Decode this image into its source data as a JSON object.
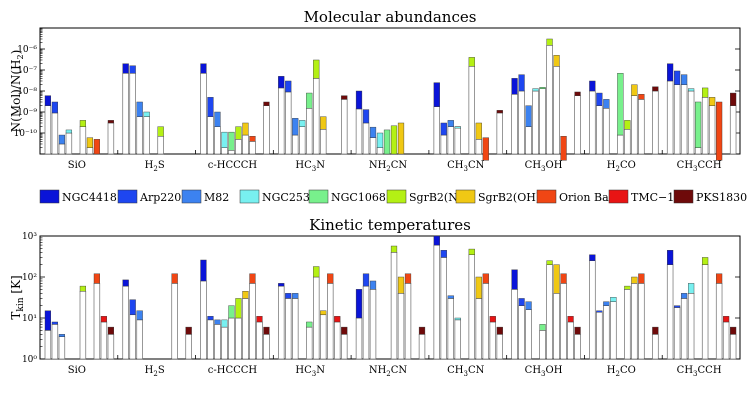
{
  "legend": [
    {
      "name": "NGC4418",
      "color": "#0a14d8"
    },
    {
      "name": "Arp220",
      "color": "#1e46f0"
    },
    {
      "name": "M82",
      "color": "#3c82f0"
    },
    {
      "name": "NGC253",
      "color": "#78f0f0"
    },
    {
      "name": "NGC1068",
      "color": "#78f08c"
    },
    {
      "name": "SgrB2(N)",
      "color": "#b4f014"
    },
    {
      "name": "SgrB2(OH)",
      "color": "#f0c814"
    },
    {
      "name": "Orion Bar",
      "color": "#f04614"
    },
    {
      "name": "TMC−1",
      "color": "#e81414"
    },
    {
      "name": "PKS1830",
      "color": "#6e0a0a"
    }
  ],
  "chart_data": [
    {
      "type": "bar",
      "title": "Molecular abundances",
      "ylabel": "N(Mol)/N(H2)",
      "yscale": "log",
      "ylim": [
        1e-11,
        1e-05
      ],
      "yticks": [
        "10⁻¹⁰",
        "10⁻⁹",
        "10⁻⁸",
        "10⁻⁷",
        "10⁻⁶"
      ],
      "categories": [
        "SiO",
        "H2S",
        "c-HCCCH",
        "HC3N",
        "NH2CN",
        "CH3CN",
        "CH3OH",
        "H2CO",
        "CH3CCH"
      ],
      "category_labels": [
        {
          "base": "SiO",
          "sub": ""
        },
        {
          "base": "H",
          "sub": "2",
          "rest": "S"
        },
        {
          "base": "c-HCCCH",
          "sub": ""
        },
        {
          "base": "HC",
          "sub": "3",
          "rest": "N"
        },
        {
          "base": "NH",
          "sub": "2",
          "rest": "CN"
        },
        {
          "base": "CH",
          "sub": "3",
          "rest": "CN"
        },
        {
          "base": "CH",
          "sub": "3",
          "rest": "OH"
        },
        {
          "base": "H",
          "sub": "2",
          "rest": "CO"
        },
        {
          "base": "CH",
          "sub": "3",
          "rest": "CCH"
        }
      ],
      "series_order": [
        "NGC4418",
        "Arp220",
        "M82",
        "NGC253",
        "NGC1068",
        "SgrB2(N)",
        "SgrB2(OH)",
        "Orion Bar",
        "TMC−1",
        "PKS1830"
      ],
      "values": [
        [
          [
            2e-09,
            6e-09
          ],
          [
            9e-10,
            3e-09
          ],
          [
            3e-11,
            8e-11
          ],
          [
            1e-10,
            1.4e-10
          ],
          [
            null,
            null
          ],
          [
            2e-10,
            4e-10
          ],
          [
            2e-11,
            6e-11
          ],
          [
            1e-11,
            5e-11
          ],
          [
            null,
            null
          ],
          [
            3e-10,
            4e-10
          ]
        ],
        [
          [
            7e-08,
            2e-07
          ],
          [
            7e-08,
            1.6e-07
          ],
          [
            6e-10,
            3e-09
          ],
          [
            6e-10,
            1e-09
          ],
          [
            null,
            null
          ],
          [
            7e-11,
            2e-10
          ],
          [
            null,
            null
          ],
          [
            null,
            null
          ],
          [
            null,
            null
          ],
          [
            null,
            null
          ]
        ],
        [
          [
            7e-08,
            2e-07
          ],
          [
            6e-10,
            5e-09
          ],
          [
            2e-10,
            1e-09
          ],
          [
            2e-11,
            1.1e-10
          ],
          [
            1.5e-11,
            1.1e-10
          ],
          [
            5e-11,
            2e-10
          ],
          [
            8e-11,
            3e-10
          ],
          [
            4e-11,
            7e-11
          ],
          [
            null,
            null
          ],
          [
            2e-09,
            3e-09
          ]
        ],
        [
          [
            1.4e-08,
            5e-08
          ],
          [
            9e-09,
            3e-08
          ],
          [
            8e-11,
            5e-10
          ],
          [
            2e-10,
            4e-10
          ],
          [
            1.5e-09,
            8e-09
          ],
          [
            4e-08,
            3e-07
          ],
          [
            1.5e-10,
            6e-10
          ],
          [
            null,
            null
          ],
          [
            null,
            null
          ],
          [
            4e-09,
            6e-09
          ]
        ],
        [
          [
            1.4e-09,
            1e-08
          ],
          [
            3e-10,
            1.3e-09
          ],
          [
            6e-11,
            1.9e-10
          ],
          [
            2e-11,
            1e-10
          ],
          [
            1e-11,
            1.4e-10
          ],
          [
            1e-11,
            2.2e-10
          ],
          [
            1e-11,
            3e-10
          ],
          [
            null,
            null
          ],
          [
            null,
            null
          ],
          [
            null,
            null
          ]
        ],
        [
          [
            1.8e-09,
            2.5e-08
          ],
          [
            8e-11,
            3e-10
          ],
          [
            2e-10,
            4e-10
          ],
          [
            2e-10,
            2e-10
          ],
          [
            null,
            null
          ],
          [
            1.5e-07,
            4e-07
          ],
          [
            5e-11,
            3e-10
          ],
          [
            5e-12,
            6e-11
          ],
          [
            null,
            null
          ],
          [
            9e-10,
            1.2e-09
          ]
        ],
        [
          [
            7e-09,
            4e-08
          ],
          [
            1e-08,
            6e-08
          ],
          [
            2e-10,
            2e-09
          ],
          [
            1e-08,
            1.3e-08
          ],
          [
            1.3e-08,
            1.5e-08
          ],
          [
            1.5e-06,
            3e-06
          ],
          [
            1.5e-07,
            5e-07
          ],
          [
            5e-12,
            7e-11
          ],
          [
            null,
            null
          ],
          [
            6e-09,
            9e-09
          ]
        ],
        [
          [
            1e-08,
            3e-08
          ],
          [
            2e-09,
            8e-09
          ],
          [
            1.5e-09,
            4e-09
          ],
          [
            null,
            null
          ],
          [
            8e-11,
            7e-08
          ],
          [
            1.5e-10,
            4e-10
          ],
          [
            6e-09,
            2e-08
          ],
          [
            4e-09,
            7e-09
          ],
          [
            null,
            null
          ],
          [
            1e-08,
            1.6e-08
          ]
        ],
        [
          [
            3e-08,
            2e-07
          ],
          [
            2e-08,
            9e-08
          ],
          [
            2e-08,
            6e-08
          ],
          [
            1e-08,
            1.3e-08
          ],
          [
            2e-11,
            3e-09
          ],
          [
            5e-09,
            1.4e-08
          ],
          [
            2e-09,
            5e-09
          ],
          [
            5e-12,
            3e-09
          ],
          [
            null,
            null
          ],
          [
            2e-09,
            8e-09
          ]
        ]
      ]
    },
    {
      "type": "bar",
      "title": "Kinetic temperatures",
      "ylabel": "T_kin [K]",
      "yscale": "log",
      "ylim": [
        1,
        1000
      ],
      "yticks": [
        "10⁰",
        "10¹",
        "10²",
        "10³"
      ],
      "categories": [
        "SiO",
        "H2S",
        "c-HCCCH",
        "HC3N",
        "NH2CN",
        "CH3CN",
        "CH3OH",
        "H2CO",
        "CH3CCH"
      ],
      "series_order": [
        "NGC4418",
        "Arp220",
        "M82",
        "NGC253",
        "NGC1068",
        "SgrB2(N)",
        "SgrB2(OH)",
        "Orion Bar",
        "TMC−1",
        "PKS1830"
      ],
      "values": [
        [
          [
            5,
            15
          ],
          [
            7,
            8
          ],
          [
            3.5,
            4
          ],
          [
            null,
            null
          ],
          [
            null,
            null
          ],
          [
            45,
            60
          ],
          [
            null,
            null
          ],
          [
            70,
            120
          ],
          [
            8,
            11
          ],
          [
            4,
            6
          ]
        ],
        [
          [
            60,
            85
          ],
          [
            12,
            28
          ],
          [
            9,
            15
          ],
          [
            null,
            null
          ],
          [
            null,
            null
          ],
          [
            null,
            null
          ],
          [
            null,
            null
          ],
          [
            70,
            120
          ],
          [
            null,
            null
          ],
          [
            4,
            6
          ]
        ],
        [
          [
            80,
            260
          ],
          [
            9,
            11
          ],
          [
            7,
            9
          ],
          [
            6,
            9
          ],
          [
            10,
            20
          ],
          [
            10,
            30
          ],
          [
            30,
            45
          ],
          [
            70,
            120
          ],
          [
            8,
            11
          ],
          [
            4,
            6
          ]
        ],
        [
          [
            60,
            70
          ],
          [
            30,
            40
          ],
          [
            30,
            40
          ],
          [
            null,
            null
          ],
          [
            6,
            8
          ],
          [
            100,
            180
          ],
          [
            12,
            15
          ],
          [
            70,
            120
          ],
          [
            8,
            11
          ],
          [
            4,
            6
          ]
        ],
        [
          [
            10,
            50
          ],
          [
            60,
            120
          ],
          [
            50,
            80
          ],
          [
            null,
            null
          ],
          [
            null,
            null
          ],
          [
            400,
            570
          ],
          [
            40,
            100
          ],
          [
            70,
            120
          ],
          [
            null,
            null
          ],
          [
            4,
            6
          ]
        ],
        [
          [
            600,
            1000
          ],
          [
            300,
            450
          ],
          [
            30,
            35
          ],
          [
            9,
            10
          ],
          [
            null,
            null
          ],
          [
            350,
            480
          ],
          [
            30,
            100
          ],
          [
            70,
            120
          ],
          [
            8,
            11
          ],
          [
            4,
            6
          ]
        ],
        [
          [
            50,
            150
          ],
          [
            20,
            30
          ],
          [
            16,
            25
          ],
          [
            null,
            null
          ],
          [
            5,
            7
          ],
          [
            200,
            250
          ],
          [
            40,
            200
          ],
          [
            70,
            120
          ],
          [
            8,
            11
          ],
          [
            4,
            6
          ]
        ],
        [
          [
            250,
            350
          ],
          [
            14,
            15
          ],
          [
            20,
            25
          ],
          [
            25,
            32
          ],
          [
            null,
            null
          ],
          [
            50,
            60
          ],
          [
            70,
            100
          ],
          [
            70,
            120
          ],
          [
            null,
            null
          ],
          [
            4,
            6
          ]
        ],
        [
          [
            200,
            450
          ],
          [
            18,
            20
          ],
          [
            30,
            40
          ],
          [
            40,
            70
          ],
          [
            null,
            null
          ],
          [
            200,
            300
          ],
          [
            null,
            null
          ],
          [
            70,
            120
          ],
          [
            8,
            11
          ],
          [
            4,
            6
          ]
        ]
      ]
    }
  ]
}
